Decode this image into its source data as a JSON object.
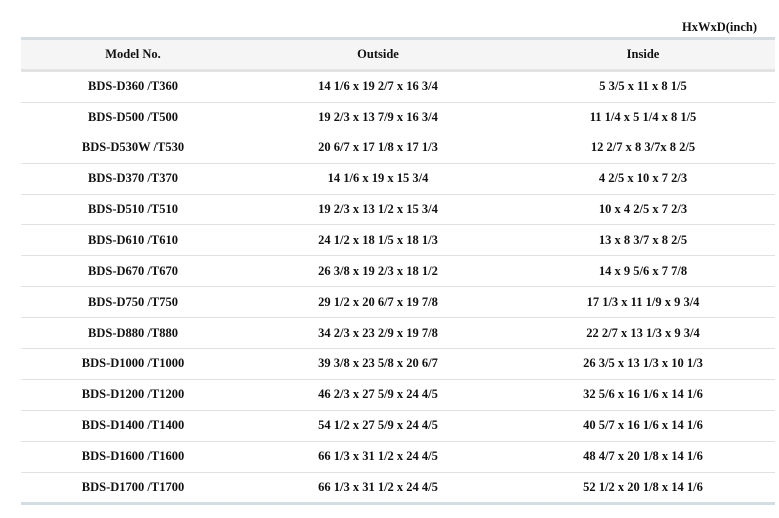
{
  "unit_label": "HxWxD(inch)",
  "headers": {
    "model": "Model No.",
    "outside": "Outside",
    "inside": "Inside"
  },
  "rows": [
    {
      "model": "BDS-D360 /T360",
      "outside": "14 1/6 x 19 2/7 x 16 3/4",
      "inside": "5 3/5 x 11 x 8 1/5"
    },
    {
      "model": "BDS-D500 /T500",
      "outside": "19 2/3 x 13 7/9 x 16 3/4",
      "inside": "11 1/4 x 5 1/4 x 8 1/5"
    },
    {
      "model": "BDS-D530W /T530",
      "outside": "20 6/7 x 17 1/8 x 17 1/3",
      "inside": "12 2/7 x 8 3/7x 8 2/5"
    },
    {
      "model": "BDS-D370 /T370",
      "outside": "14 1/6 x 19 x 15 3/4",
      "inside": "4 2/5 x 10 x 7 2/3"
    },
    {
      "model": "BDS-D510 /T510",
      "outside": "19 2/3 x 13 1/2 x 15 3/4",
      "inside": "10 x 4 2/5 x 7 2/3"
    },
    {
      "model": "BDS-D610 /T610",
      "outside": "24 1/2 x 18 1/5 x 18 1/3",
      "inside": "13 x 8 3/7 x 8 2/5"
    },
    {
      "model": "BDS-D670 /T670",
      "outside": "26 3/8 x 19 2/3 x 18 1/2",
      "inside": "14 x 9 5/6 x 7 7/8"
    },
    {
      "model": "BDS-D750 /T750",
      "outside": "29 1/2 x 20 6/7 x 19 7/8",
      "inside": "17 1/3 x 11 1/9 x 9 3/4"
    },
    {
      "model": "BDS-D880 /T880",
      "outside": "34 2/3 x 23 2/9 x 19 7/8",
      "inside": "22 2/7 x 13 1/3 x 9 3/4"
    },
    {
      "model": "BDS-D1000 /T1000",
      "outside": "39 3/8 x 23 5/8 x 20 6/7",
      "inside": "26 3/5 x 13 1/3 x 10 1/3"
    },
    {
      "model": "BDS-D1200 /T1200",
      "outside": "46 2/3 x 27 5/9 x 24 4/5",
      "inside": "32 5/6 x 16 1/6 x 14 1/6"
    },
    {
      "model": "BDS-D1400 /T1400",
      "outside": "54 1/2 x 27 5/9 x 24 4/5",
      "inside": "40 5/7 x 16 1/6 x 14 1/6"
    },
    {
      "model": "BDS-D1600 /T1600",
      "outside": "66 1/3 x 31 1/2 x 24 4/5",
      "inside": "48 4/7 x 20 1/8 x 14 1/6"
    },
    {
      "model": "BDS-D1700 /T1700",
      "outside": "66 1/3 x 31 1/2 x 24 4/5",
      "inside": "52 1/2 x 20 1/8 x 14 1/6"
    }
  ]
}
